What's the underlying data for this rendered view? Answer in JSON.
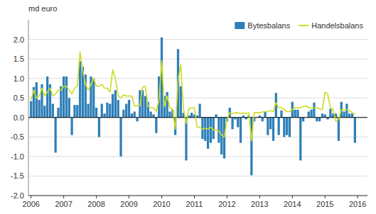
{
  "chart_data": {
    "type": "bar",
    "y_label": "md euro",
    "x": [
      2006,
      2006.0833333333333,
      2006.1666666666667,
      2006.25,
      2006.3333333333333,
      2006.4166666666667,
      2006.5,
      2006.5833333333333,
      2006.6666666666667,
      2006.75,
      2006.8333333333333,
      2006.9166666666667,
      2007,
      2007.0833333333333,
      2007.1666666666667,
      2007.25,
      2007.3333333333333,
      2007.4166666666667,
      2007.5,
      2007.5833333333333,
      2007.6666666666667,
      2007.75,
      2007.8333333333333,
      2007.9166666666667,
      2008,
      2008.0833333333333,
      2008.1666666666667,
      2008.25,
      2008.3333333333333,
      2008.4166666666667,
      2008.5,
      2008.5833333333333,
      2008.6666666666667,
      2008.75,
      2008.8333333333333,
      2008.9166666666667,
      2009,
      2009.0833333333333,
      2009.1666666666667,
      2009.25,
      2009.3333333333333,
      2009.4166666666667,
      2009.5,
      2009.5833333333333,
      2009.6666666666667,
      2009.75,
      2009.8333333333333,
      2009.9166666666667,
      2010,
      2010.0833333333333,
      2010.1666666666667,
      2010.25,
      2010.3333333333333,
      2010.4166666666667,
      2010.5,
      2010.5833333333333,
      2010.6666666666667,
      2010.75,
      2010.8333333333333,
      2010.9166666666667,
      2011,
      2011.0833333333333,
      2011.1666666666667,
      2011.25,
      2011.3333333333333,
      2011.4166666666667,
      2011.5,
      2011.5833333333333,
      2011.6666666666667,
      2011.75,
      2011.8333333333333,
      2011.9166666666667,
      2012,
      2012.0833333333333,
      2012.1666666666667,
      2012.25,
      2012.3333333333333,
      2012.4166666666667,
      2012.5,
      2012.5833333333333,
      2012.6666666666667,
      2012.75,
      2012.8333333333333,
      2012.9166666666667,
      2013,
      2013.0833333333333,
      2013.1666666666667,
      2013.25,
      2013.3333333333333,
      2013.4166666666667,
      2013.5,
      2013.5833333333333,
      2013.6666666666667,
      2013.75,
      2013.8333333333333,
      2013.9166666666667,
      2014,
      2014.0833333333333,
      2014.1666666666667,
      2014.25,
      2014.3333333333333,
      2014.4166666666667,
      2014.5,
      2014.5833333333333,
      2014.6666666666667,
      2014.75,
      2014.8333333333333,
      2014.9166666666667,
      2015,
      2015.0833333333333,
      2015.1666666666667,
      2015.25,
      2015.3333333333333,
      2015.4166666666667,
      2015.5,
      2015.5833333333333,
      2015.6666666666667,
      2015.75,
      2015.8333333333333,
      2015.9166666666667
    ],
    "series": [
      {
        "name": "Bytesbalans",
        "type": "bar",
        "color": "#2e7fb8",
        "values": [
          0.42,
          0.78,
          0.9,
          0.45,
          0.85,
          0.3,
          1.05,
          0.85,
          0.35,
          -0.9,
          0.25,
          0.8,
          1.05,
          1.05,
          0.5,
          -0.45,
          0.32,
          0.32,
          1.44,
          1.3,
          1.1,
          0.35,
          1.05,
          1.0,
          0.25,
          -0.5,
          0.35,
          0.1,
          0.38,
          0.35,
          0.6,
          0.7,
          0.45,
          -1.0,
          0.2,
          0.35,
          0.45,
          0.1,
          0.15,
          -0.1,
          0.7,
          0.7,
          0.55,
          0.4,
          0.15,
          0.08,
          -0.4,
          1.05,
          2.05,
          0.55,
          0.65,
          0.15,
          0.2,
          -0.45,
          1.75,
          0.8,
          0.12,
          -1.1,
          0.05,
          0.12,
          0.08,
          0.05,
          0.35,
          -0.55,
          -0.6,
          -0.8,
          -0.65,
          -0.55,
          0.08,
          -0.65,
          -0.95,
          -1.05,
          -0.1,
          0.25,
          -0.3,
          -0.05,
          -0.25,
          -0.65,
          0.05,
          -0.05,
          0.05,
          -1.48,
          -0.1,
          0.0,
          0.05,
          -0.1,
          0.15,
          -0.45,
          -0.3,
          -0.6,
          0.63,
          -0.45,
          0.18,
          -0.5,
          -0.45,
          -0.5,
          0.4,
          0.2,
          0.2,
          -1.1,
          -0.1,
          0.0,
          0.15,
          0.2,
          0.38,
          -0.1,
          -0.1,
          0.1,
          0.08,
          -0.05,
          0.22,
          0.1,
          0.1,
          -0.6,
          0.4,
          0.15,
          0.35,
          0.1,
          0.1,
          -0.65
        ]
      },
      {
        "name": "Handelsbalans",
        "type": "line",
        "color": "#ccdd22",
        "values": [
          0.45,
          0.7,
          0.5,
          0.55,
          0.75,
          0.55,
          0.65,
          0.75,
          0.55,
          0.6,
          0.7,
          0.7,
          0.8,
          0.8,
          0.7,
          0.6,
          0.75,
          0.8,
          1.68,
          1.2,
          0.85,
          0.7,
          0.85,
          1.0,
          0.8,
          0.8,
          0.85,
          0.75,
          0.75,
          0.65,
          1.22,
          1.0,
          0.55,
          0.5,
          0.58,
          0.55,
          0.55,
          0.55,
          0.3,
          0.3,
          0.3,
          0.78,
          0.8,
          0.28,
          0.25,
          0.25,
          0.15,
          0.45,
          1.45,
          0.28,
          0.55,
          0.25,
          0.2,
          -0.3,
          0.95,
          1.35,
          0.22,
          -0.15,
          0.22,
          0.25,
          0.25,
          -0.25,
          -0.25,
          -0.3,
          -0.28,
          -0.3,
          -0.25,
          -0.32,
          -0.32,
          -0.35,
          -0.45,
          -0.5,
          -0.05,
          0.12,
          0.1,
          0.12,
          0.12,
          0.1,
          0.12,
          0.1,
          0.12,
          -0.6,
          0.12,
          0.12,
          0.12,
          0.14,
          0.15,
          0.15,
          0.18,
          0.15,
          0.38,
          0.25,
          0.25,
          0.2,
          0.15,
          0.15,
          0.2,
          0.25,
          0.25,
          0.25,
          0.28,
          0.3,
          0.25,
          0.25,
          0.25,
          0.25,
          0.22,
          0.2,
          0.65,
          0.6,
          0.25,
          0.2,
          -0.1,
          -0.05,
          0.2,
          0.2,
          0.2,
          0.18,
          0.12,
          0.08
        ]
      }
    ],
    "xlim": [
      2005.92,
      2016.3
    ],
    "xticks": [
      2006,
      2007,
      2008,
      2009,
      2010,
      2011,
      2012,
      2013,
      2014,
      2015,
      2016
    ],
    "ylim": [
      -2.0,
      2.5
    ],
    "yticks": [
      {
        "value": -2.0,
        "label": "-2.0"
      },
      -1.5,
      {
        "value": -1.0,
        "label": "-1.0"
      },
      -0.5,
      {
        "value": 0.0,
        "label": "0.0"
      },
      0.5,
      {
        "value": 1.0,
        "label": "1.0"
      },
      1.5,
      {
        "value": 2.0,
        "label": "2.0"
      }
    ],
    "grid": true,
    "legend": "upper right"
  }
}
